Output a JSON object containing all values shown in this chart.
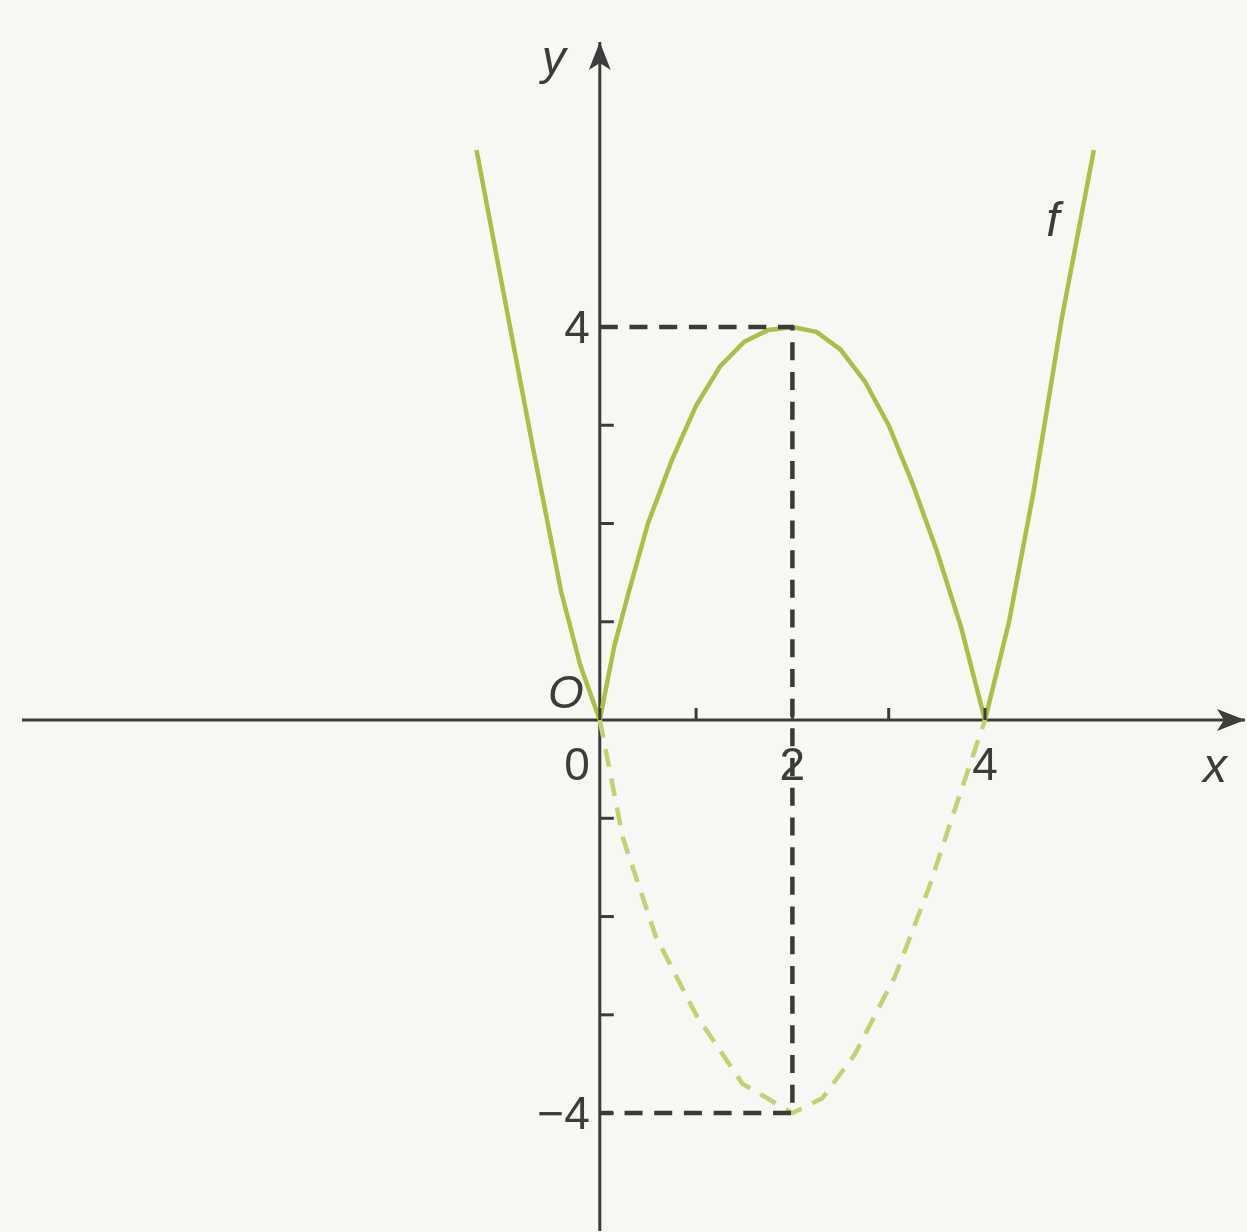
{
  "chart_data": {
    "type": "line",
    "xlabel": "x",
    "ylabel": "y",
    "xlim": [
      -6,
      6.7
    ],
    "ylim": [
      -5.2,
      6.9
    ],
    "xticks": [
      0,
      {
        "value": 1,
        "label": null
      },
      2,
      {
        "value": 3,
        "label": null
      },
      4
    ],
    "yticks": [
      -4,
      {
        "value": -3,
        "label": null
      },
      {
        "value": -2,
        "label": null
      },
      {
        "value": -1,
        "label": null
      },
      {
        "value": 1,
        "label": null
      },
      {
        "value": 2,
        "label": null
      },
      {
        "value": 3,
        "label": null
      },
      4
    ],
    "marker": "none",
    "line_style": "solid",
    "series": [
      {
        "name": "f",
        "color": "#a8c043",
        "x": [
          -1.28,
          -1.0,
          -0.7,
          -0.4,
          -0.2,
          0,
          0.15,
          0.3,
          0.5,
          0.75,
          1.0,
          1.25,
          1.5,
          1.75,
          2.0,
          2.25,
          2.5,
          2.75,
          3.0,
          3.25,
          3.5,
          3.75,
          4.0,
          4.25,
          4.5,
          4.8,
          5.13
        ],
        "values": [
          5.8,
          4.35,
          2.8,
          1.3,
          0.55,
          0,
          0.75,
          1.3,
          2.0,
          2.65,
          3.2,
          3.6,
          3.85,
          3.97,
          4.0,
          3.95,
          3.77,
          3.45,
          3.0,
          2.4,
          1.72,
          0.95,
          0,
          1.0,
          2.3,
          4.1,
          5.8
        ]
      },
      {
        "color": "#c2d270",
        "line_style": "dashed",
        "x": [
          0,
          0.24,
          0.58,
          1.0,
          1.48,
          2.0,
          2.31,
          2.65,
          3.07,
          3.42,
          3.69,
          4.0
        ],
        "values": [
          0,
          -1.2,
          -2.2,
          -3.0,
          -3.7,
          -4.0,
          -3.85,
          -3.4,
          -2.6,
          -1.7,
          -0.9,
          0
        ]
      },
      {
        "color": "#3a3a3a",
        "line_style": "dashed",
        "x": [
          0,
          2,
          2,
          0
        ],
        "values": [
          4,
          4,
          -4,
          -4
        ]
      }
    ],
    "annotations": [
      {
        "text": "O",
        "x": 0,
        "y": 0
      }
    ]
  }
}
